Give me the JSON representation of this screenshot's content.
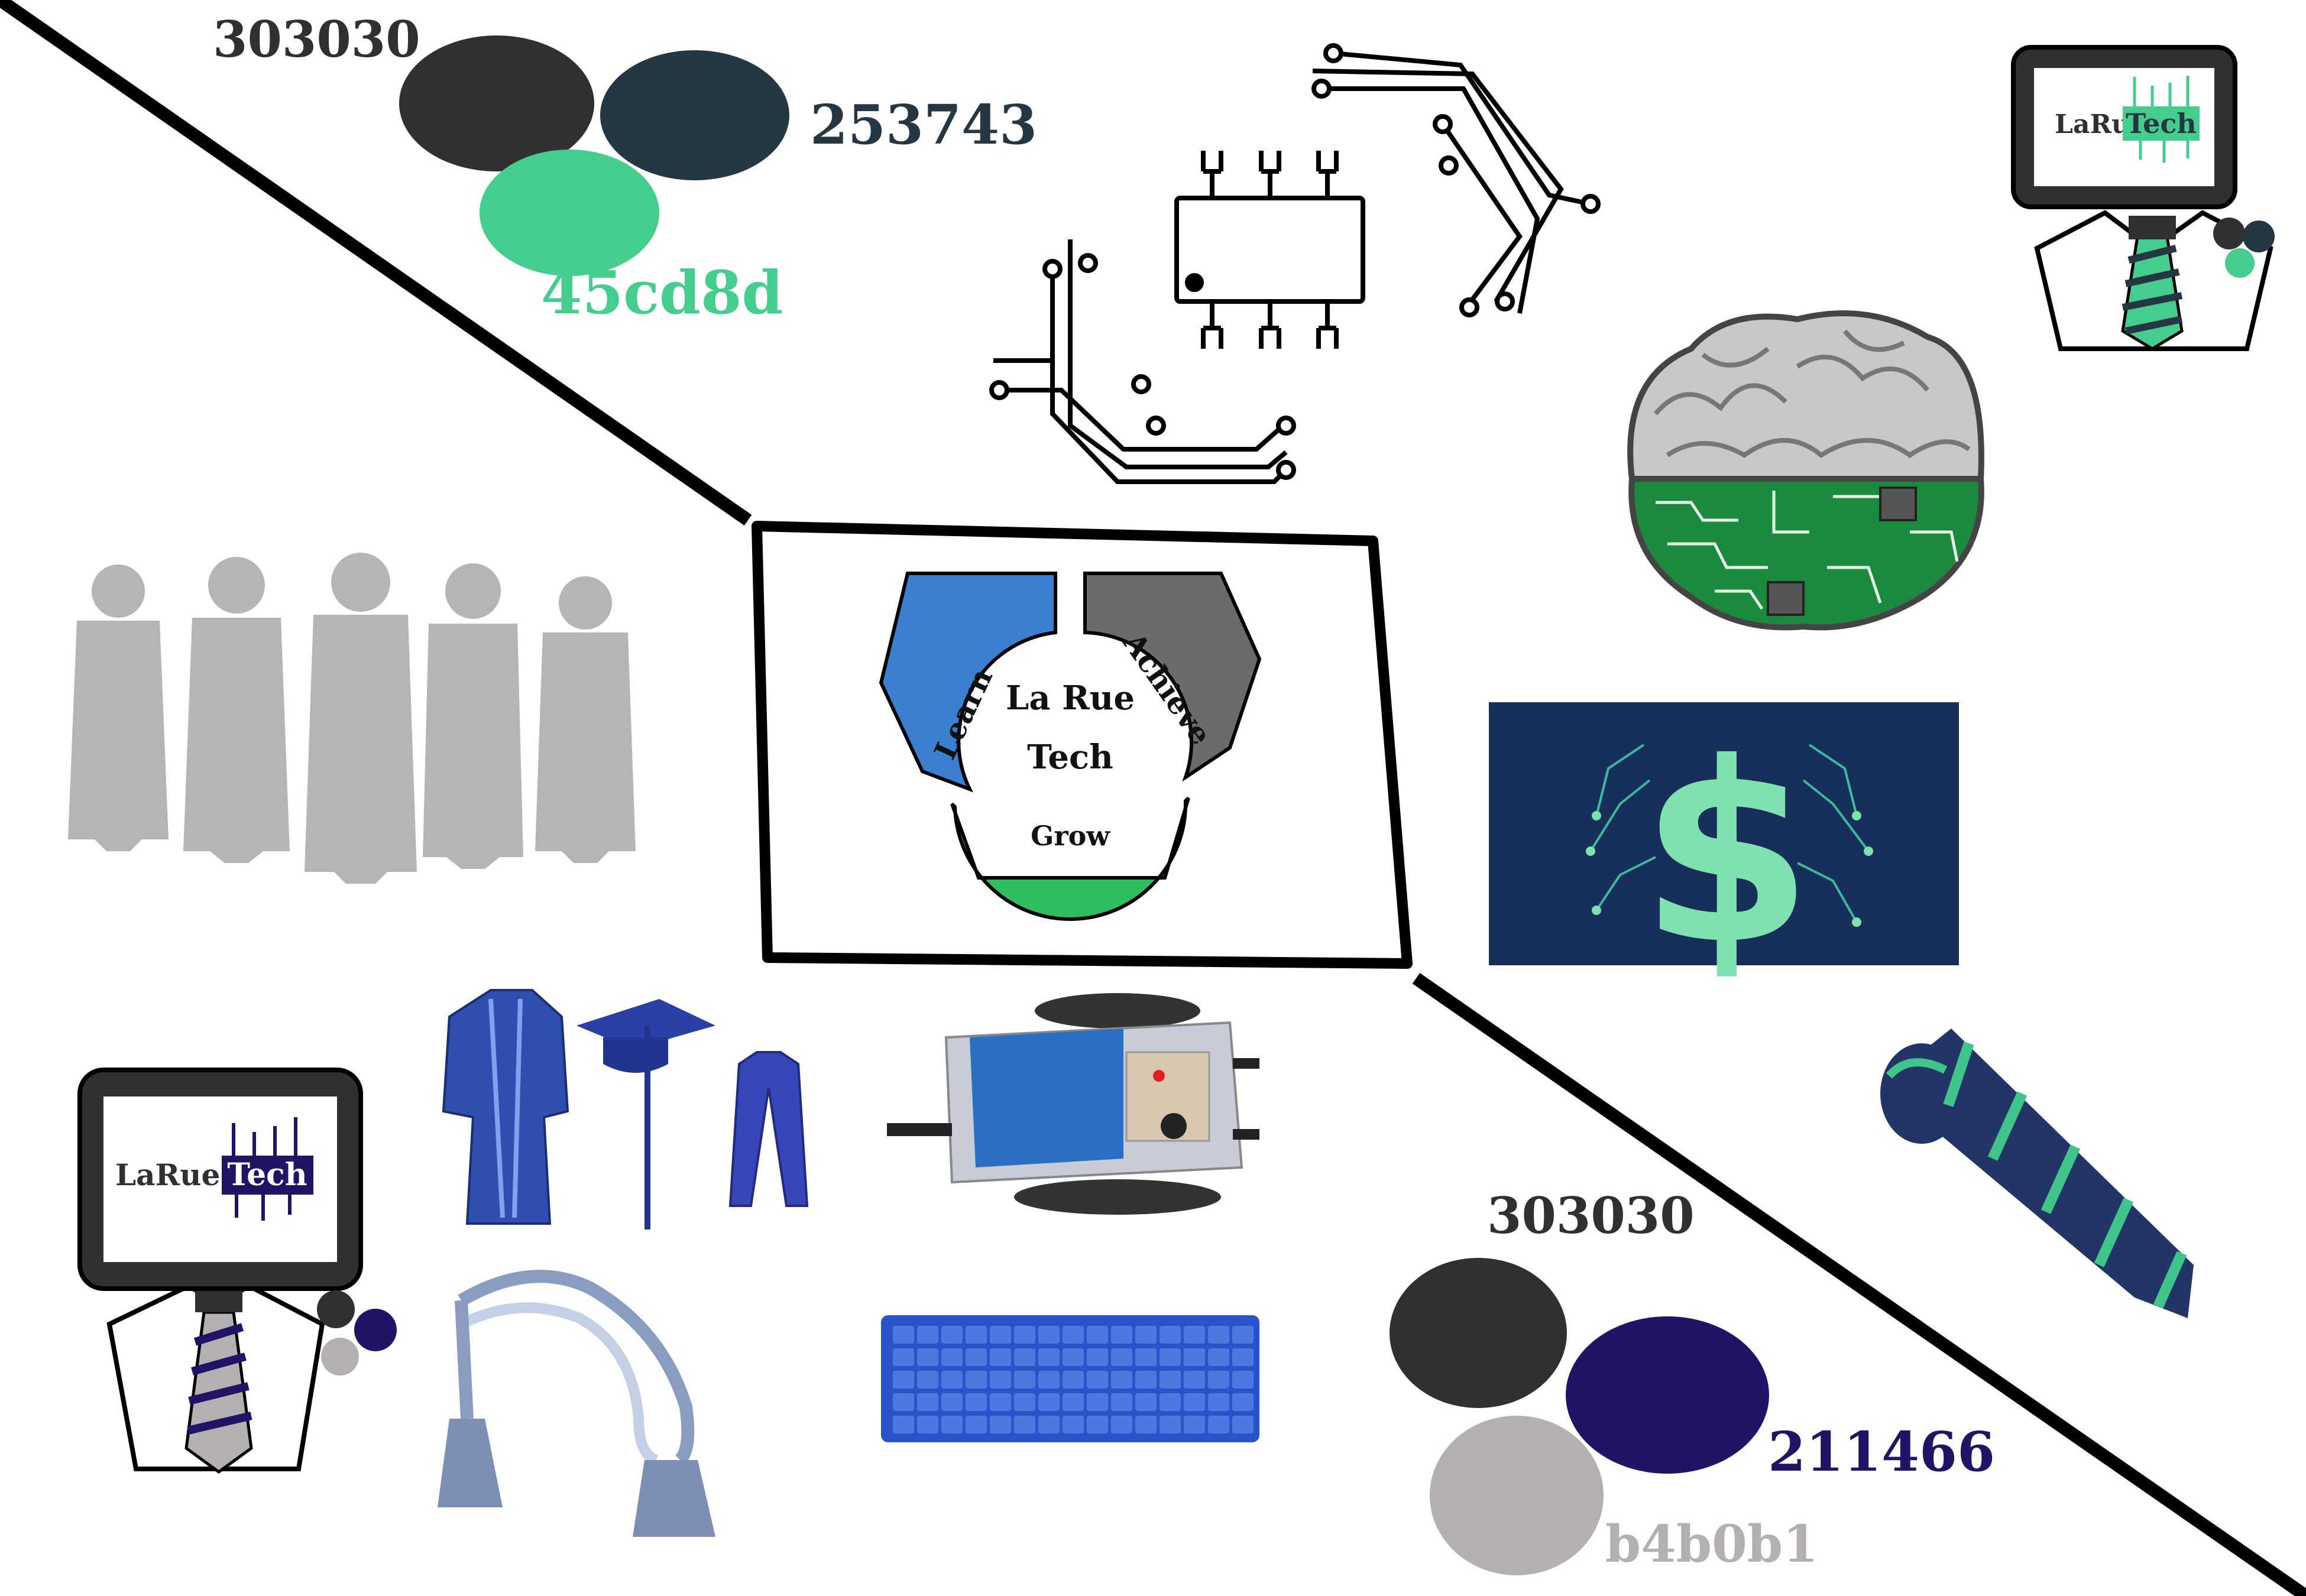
{
  "palette_top": {
    "labels": [
      "303030",
      "253743",
      "45cd8d"
    ],
    "colors": [
      "#303030",
      "#253743",
      "#45cd8d"
    ]
  },
  "palette_bottom": {
    "labels": [
      "303030",
      "211466",
      "b4b0b1"
    ],
    "colors": [
      "#303030",
      "#211466",
      "#b4b0b1"
    ]
  },
  "center_logo": {
    "name_line1": "La Rue",
    "name_line2": "Tech",
    "segments": [
      "Learn",
      "Achieve",
      "Grow"
    ],
    "segment_colors": [
      "#3a7fd0",
      "#6b6b6b",
      "#2fbd5f"
    ]
  },
  "mascot_top": {
    "brand_part1": "LaRue",
    "brand_part2": "Tech",
    "accent": "#45cd8d",
    "dots": [
      "#303030",
      "#253743",
      "#45cd8d"
    ]
  },
  "mascot_bottom": {
    "brand_part1": "LaRue",
    "brand_part2": "Tech",
    "accent": "#211466",
    "dots": [
      "#303030",
      "#211466",
      "#b4b0b1"
    ]
  },
  "icons": [
    "circuit-traces-icon",
    "microchip-icon",
    "circuit-brain-icon",
    "dollar-circuit-icon",
    "business-people-silhouettes",
    "graduation-gown-icon",
    "graduation-cap-icon",
    "graduation-stole-icon",
    "honor-cords-icon",
    "robot-board-icon",
    "keyboard-cover-icon",
    "striped-tie-icon"
  ],
  "colors": {
    "line": "#000000",
    "silhouette": "#b5b5b5",
    "dollar_bg": "#16305a",
    "dollar_fg": "#7fe0b0",
    "brain_gray": "#c8c8c8",
    "brain_green": "#1c8a3c",
    "gown_blue": "#2e4fb0",
    "tie_navy": "#233566",
    "tie_stripe": "#3fc58a",
    "keyboard": "#2a52c9"
  }
}
